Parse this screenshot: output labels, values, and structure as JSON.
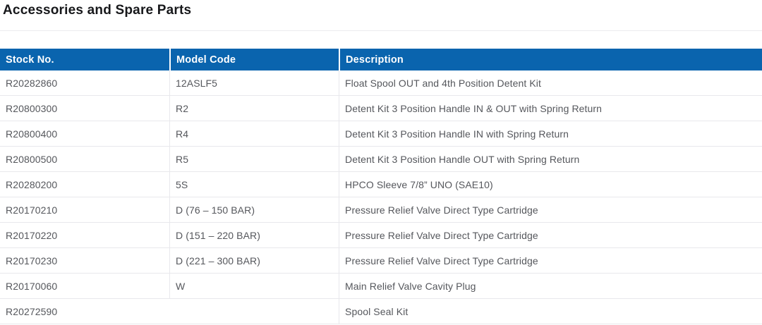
{
  "page": {
    "title": "Accessories and Spare Parts"
  },
  "colors": {
    "header_bg": "#0a64ae",
    "header_text": "#ffffff",
    "body_text": "#55575c",
    "divider": "#e8e8ec",
    "title_text": "#17181b"
  },
  "table": {
    "columns": {
      "stock_no": "Stock No.",
      "model_code": "Model Code",
      "description": "Description"
    },
    "rows": [
      {
        "stock_no": "R20282860",
        "model_code": "12ASLF5",
        "description": "Float Spool OUT and 4th Position Detent Kit"
      },
      {
        "stock_no": "R20800300",
        "model_code": "R2",
        "description": "Detent Kit 3 Position Handle IN & OUT with Spring Return"
      },
      {
        "stock_no": "R20800400",
        "model_code": "R4",
        "description": "Detent Kit 3 Position Handle IN with Spring Return"
      },
      {
        "stock_no": "R20800500",
        "model_code": "R5",
        "description": "Detent Kit 3 Position Handle OUT with Spring Return"
      },
      {
        "stock_no": "R20280200",
        "model_code": "5S",
        "description": "HPCO Sleeve 7/8” UNO (SAE10)"
      },
      {
        "stock_no": "R20170210",
        "model_code": "D (76 – 150 BAR)",
        "description": "Pressure Relief Valve Direct Type Cartridge"
      },
      {
        "stock_no": "R20170220",
        "model_code": "D (151 – 220 BAR)",
        "description": "Pressure Relief Valve Direct Type Cartridge"
      },
      {
        "stock_no": "R20170230",
        "model_code": "D (221 – 300 BAR)",
        "description": "Pressure Relief Valve Direct Type Cartridge"
      },
      {
        "stock_no": "R20170060",
        "model_code": "W",
        "description": "Main Relief Valve Cavity Plug"
      },
      {
        "stock_no": "R20272590",
        "model_code": "",
        "description": "Spool Seal Kit"
      }
    ]
  }
}
